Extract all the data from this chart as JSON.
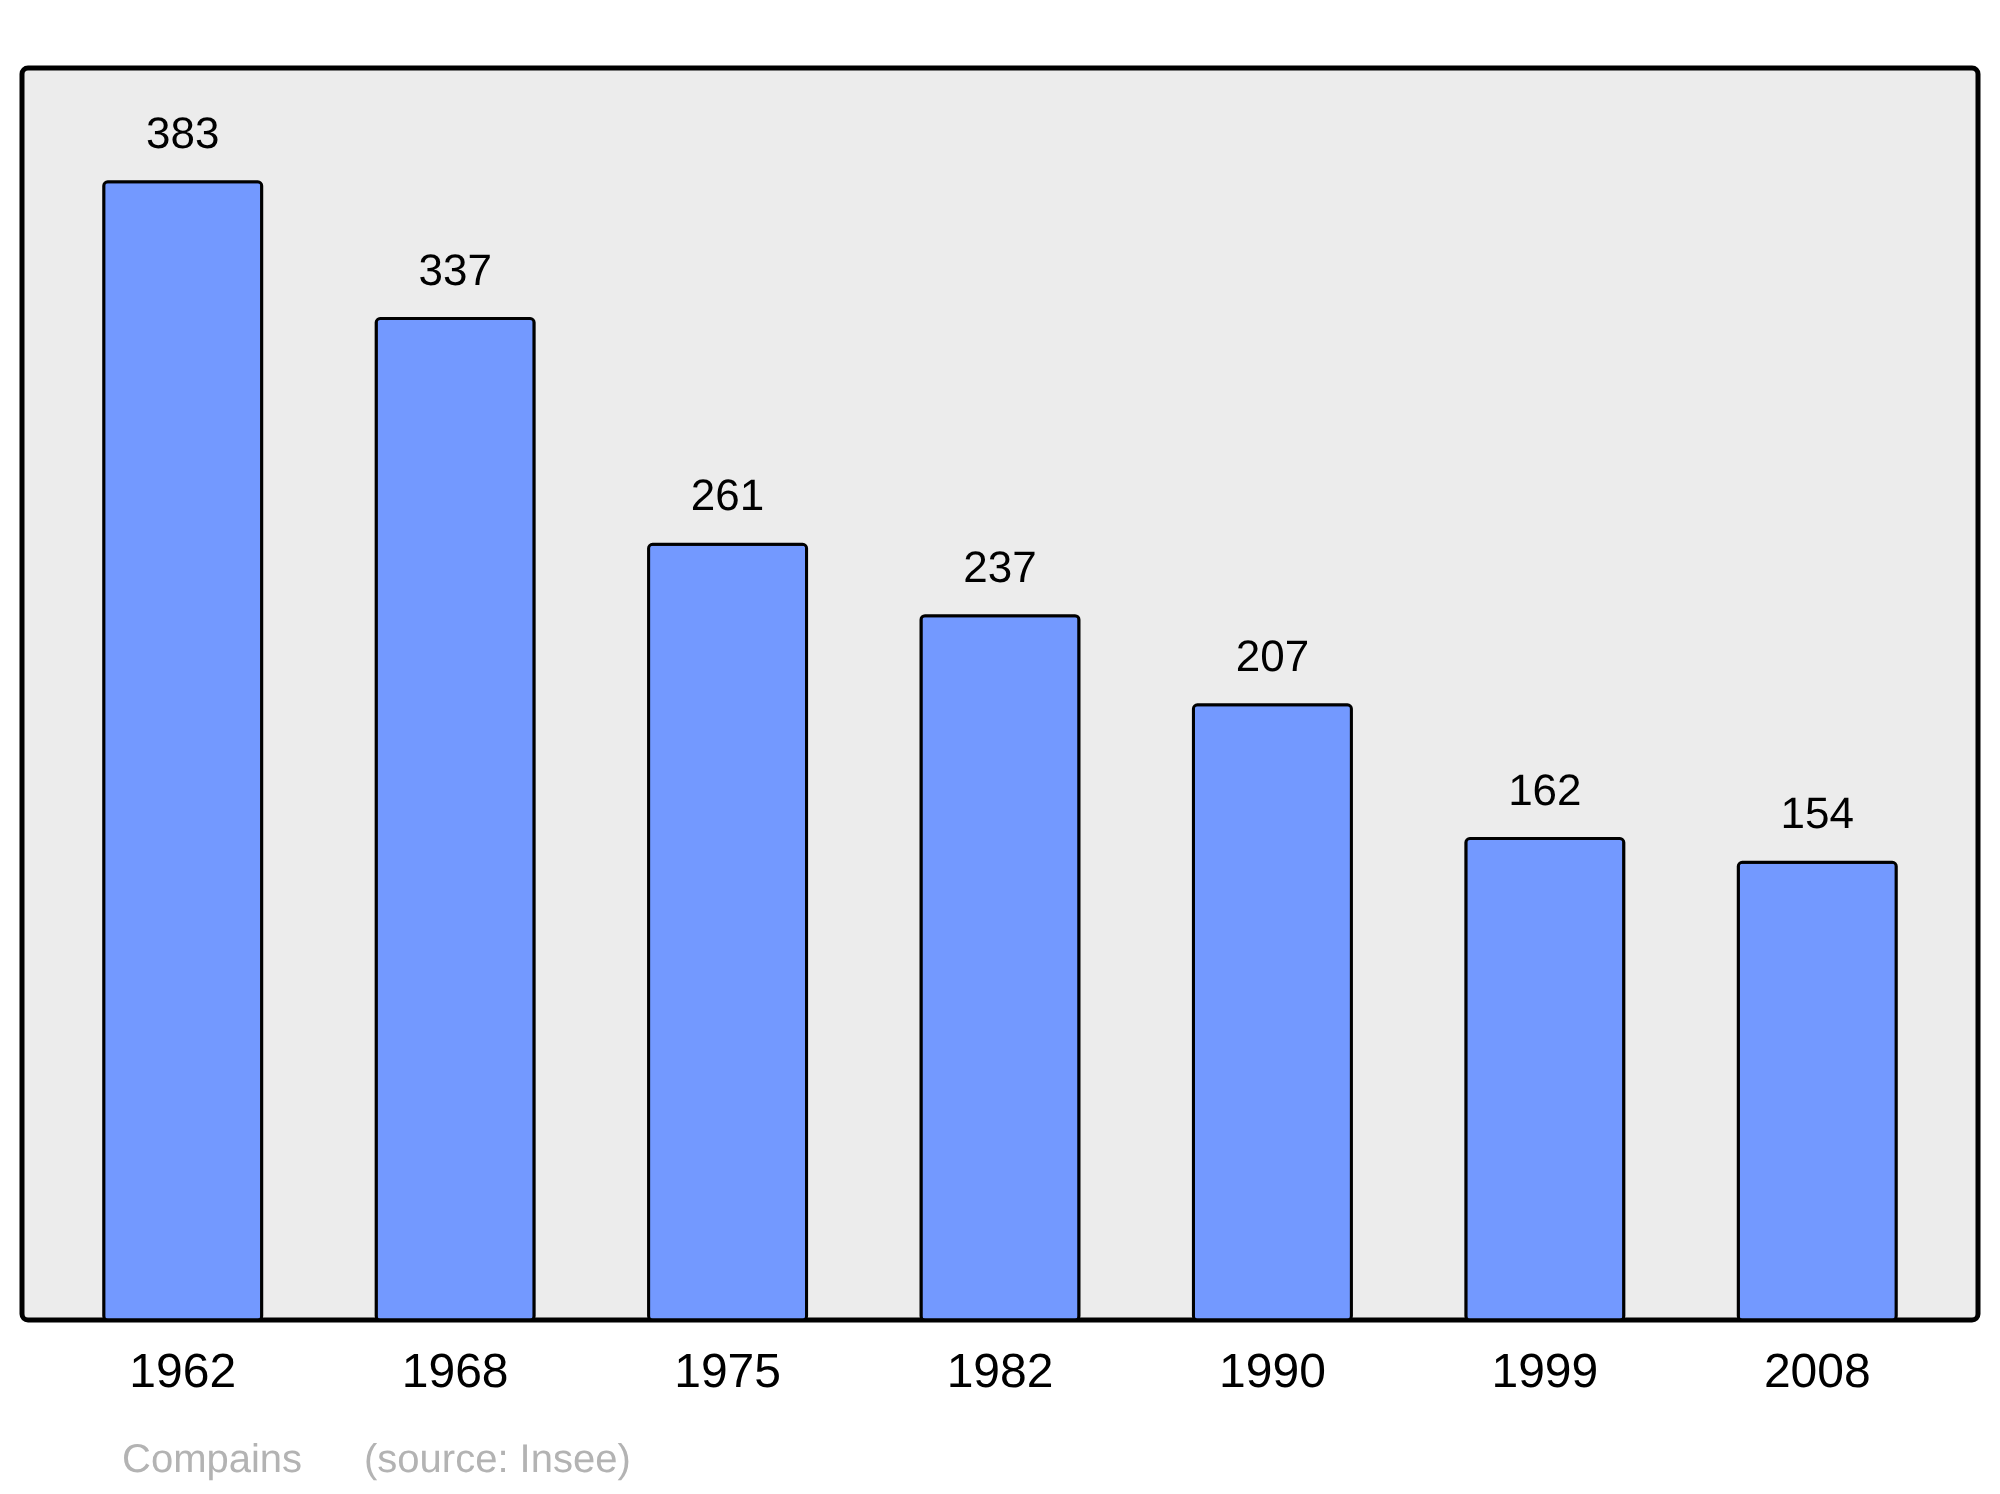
{
  "chart_data": {
    "type": "bar",
    "categories": [
      "1962",
      "1968",
      "1975",
      "1982",
      "1990",
      "1999",
      "2008"
    ],
    "values": [
      383,
      337,
      261,
      237,
      207,
      162,
      154
    ],
    "color": "#7399ff",
    "data_labels": true,
    "annotations": [
      "Compains",
      "(source: Insee)"
    ]
  }
}
